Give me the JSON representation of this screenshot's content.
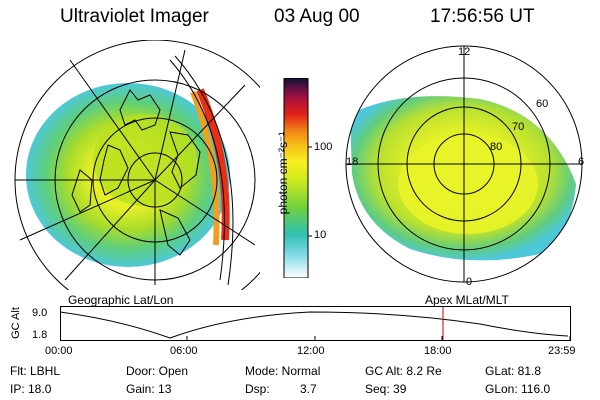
{
  "header": {
    "instrument": "Ultraviolet Imager",
    "date": "03 Aug 00",
    "time": "17:56:56 UT"
  },
  "colorbar": {
    "unit_label": "photon cm⁻²s⁻¹",
    "ticks": [
      "100",
      "10"
    ]
  },
  "geo_panel": {
    "label": "Geographic Lat/Lon"
  },
  "apex_panel": {
    "label": "Apex MLat/MLT",
    "mlt_labels": {
      "top": "12",
      "left": "18",
      "right": "6",
      "bottom": "0"
    },
    "lat_labels": [
      "60",
      "70",
      "80"
    ]
  },
  "orbit": {
    "ylabel": "GC Alt",
    "yticks": [
      "9.0",
      "1.8"
    ],
    "xticks": [
      "00:00",
      "06:00",
      "12:00",
      "18:00",
      "23:59"
    ],
    "marker_color": "#cc0000"
  },
  "info": {
    "filter": "Flt: LBHL",
    "door": "Door: Open",
    "mode": "Mode: Normal",
    "gc_alt": "GC Alt: 8.2 Re",
    "glat": "GLat: 81.8",
    "ip": "IP: 18.0",
    "gain": "Gain: 13",
    "dsp_label": "Dsp:",
    "dsp_value": "3.7",
    "seq": "Seq: 39",
    "glon": "GLon: 116.0"
  }
}
